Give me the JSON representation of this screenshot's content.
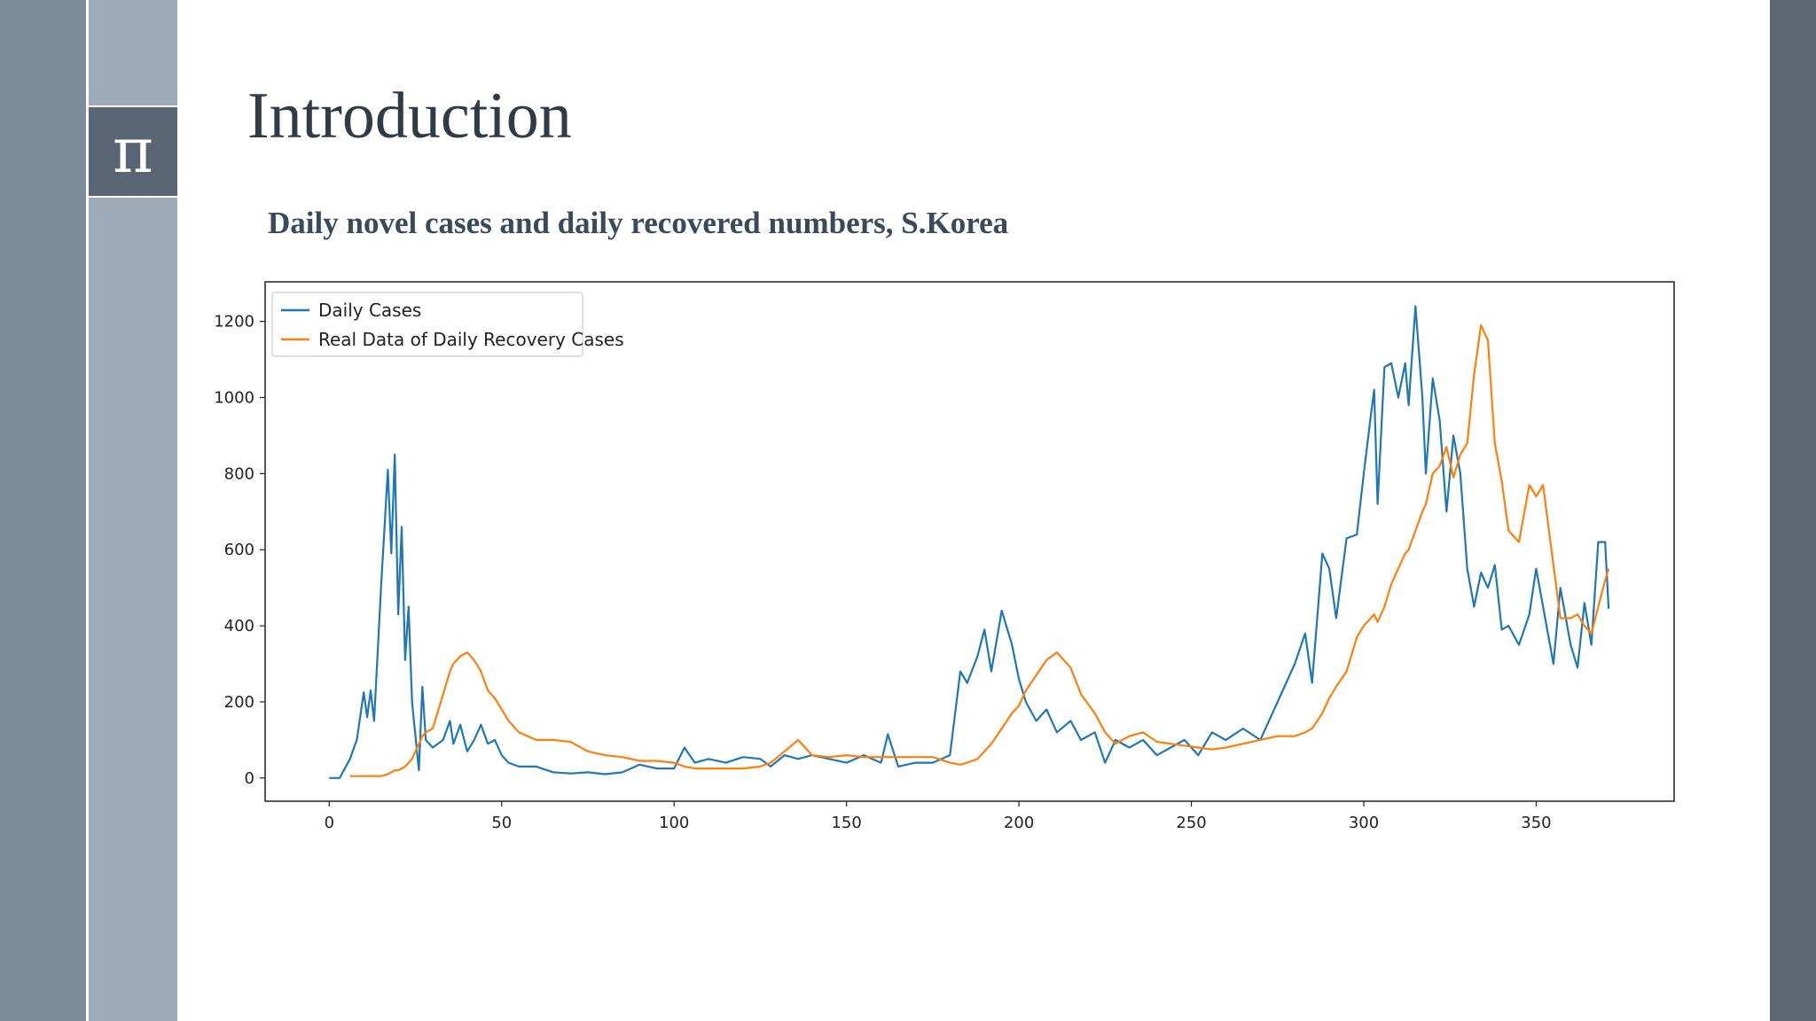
{
  "slide": {
    "title": "Introduction",
    "icon": "π"
  },
  "chart_data": {
    "type": "line",
    "title": "Daily novel cases and daily recovered numbers, S.Korea",
    "x": [
      0,
      3,
      6,
      8,
      10,
      11,
      12,
      13,
      15,
      17,
      18,
      19,
      20,
      21,
      22,
      23,
      24,
      26,
      27,
      28,
      30,
      33,
      35,
      36,
      38,
      40,
      42,
      44,
      46,
      48,
      50,
      52,
      55,
      60,
      65,
      70,
      75,
      80,
      85,
      90,
      95,
      100,
      103,
      106,
      110,
      115,
      120,
      125,
      128,
      132,
      136,
      140,
      145,
      150,
      155,
      160,
      162,
      165,
      170,
      175,
      180,
      183,
      185,
      188,
      190,
      192,
      195,
      198,
      200,
      202,
      205,
      208,
      211,
      215,
      218,
      222,
      225,
      228,
      232,
      236,
      240,
      244,
      248,
      252,
      256,
      260,
      265,
      270,
      275,
      280,
      283,
      285,
      288,
      290,
      292,
      295,
      298,
      300,
      302,
      303,
      304,
      306,
      308,
      310,
      312,
      313,
      315,
      317,
      318,
      320,
      322,
      324,
      326,
      328,
      330,
      332,
      334,
      336,
      338,
      340,
      342,
      345,
      348,
      350,
      352,
      355,
      357,
      360,
      362,
      364,
      366,
      368,
      370,
      371
    ],
    "series": [
      {
        "name": "Daily Cases",
        "color": "#1f77b4",
        "values": [
          0,
          0,
          50,
          100,
          225,
          160,
          230,
          150,
          500,
          810,
          590,
          850,
          430,
          660,
          310,
          450,
          200,
          20,
          240,
          100,
          80,
          100,
          150,
          90,
          140,
          70,
          100,
          140,
          90,
          100,
          60,
          40,
          30,
          30,
          15,
          12,
          15,
          10,
          15,
          35,
          25,
          25,
          80,
          40,
          50,
          40,
          55,
          50,
          30,
          60,
          50,
          60,
          50,
          40,
          60,
          40,
          115,
          30,
          40,
          40,
          60,
          280,
          250,
          320,
          390,
          280,
          440,
          350,
          260,
          200,
          150,
          180,
          120,
          150,
          100,
          120,
          40,
          100,
          80,
          100,
          60,
          80,
          100,
          60,
          120,
          100,
          130,
          100,
          200,
          300,
          380,
          250,
          590,
          550,
          420,
          630,
          640,
          800,
          950,
          1020,
          720,
          1080,
          1090,
          1000,
          1090,
          980,
          1240,
          1000,
          800,
          1050,
          940,
          700,
          900,
          800,
          550,
          450,
          540,
          500,
          560,
          390,
          400,
          350,
          430,
          550,
          450,
          300,
          500,
          350,
          290,
          460,
          350,
          620,
          620,
          445
        ]
      },
      {
        "name": "Real Data of Daily Recovery Cases",
        "color": "#ff7f0e",
        "values": [
          null,
          null,
          5,
          5,
          5,
          5,
          5,
          5,
          5,
          10,
          15,
          20,
          20,
          25,
          30,
          40,
          50,
          90,
          110,
          120,
          130,
          220,
          280,
          300,
          320,
          330,
          310,
          280,
          230,
          210,
          180,
          150,
          120,
          100,
          100,
          95,
          70,
          60,
          55,
          45,
          45,
          40,
          30,
          25,
          25,
          25,
          25,
          30,
          40,
          70,
          100,
          60,
          55,
          60,
          55,
          55,
          55,
          55,
          55,
          55,
          40,
          35,
          40,
          50,
          70,
          90,
          130,
          170,
          190,
          230,
          270,
          310,
          330,
          290,
          220,
          170,
          120,
          90,
          110,
          120,
          95,
          90,
          85,
          80,
          75,
          80,
          90,
          100,
          110,
          110,
          120,
          130,
          170,
          210,
          240,
          280,
          370,
          400,
          420,
          430,
          410,
          450,
          510,
          550,
          590,
          600,
          650,
          700,
          720,
          800,
          820,
          870,
          790,
          850,
          880,
          1060,
          1190,
          1150,
          880,
          780,
          650,
          620,
          770,
          740,
          770,
          560,
          420,
          420,
          430,
          400,
          380,
          450,
          520,
          550
        ]
      }
    ],
    "xlim": [
      -18.6,
      390
    ],
    "ylim": [
      -61,
      1304
    ],
    "xticks": [
      0,
      50,
      100,
      150,
      200,
      250,
      300,
      350
    ],
    "yticks": [
      0,
      200,
      400,
      600,
      800,
      1000,
      1200
    ],
    "legend": "upper left",
    "grid": false
  }
}
